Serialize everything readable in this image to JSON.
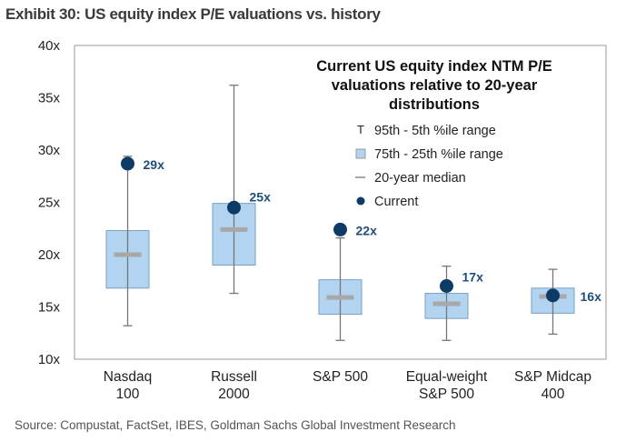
{
  "chart_data": {
    "type": "boxplot",
    "title": "Exhibit 30: US equity index P/E valuations vs. history",
    "subtitle": [
      "Current US equity index NTM P/E",
      "valuations relative to 20-year",
      "distributions"
    ],
    "ylim": [
      10,
      40
    ],
    "yticks": [
      10,
      15,
      20,
      25,
      30,
      35,
      40
    ],
    "ytick_suffix": "x",
    "legend_position": "top-right",
    "legend": [
      {
        "symbol": "T",
        "label": "95th - 5th %ile range"
      },
      {
        "symbol": "box",
        "label": "75th - 25th %ile range"
      },
      {
        "symbol": "line",
        "label": "20-year median"
      },
      {
        "symbol": "dot",
        "label": "Current"
      }
    ],
    "categories": [
      {
        "label": [
          "Nasdaq",
          "100"
        ],
        "p5": 13.2,
        "p25": 16.8,
        "median": 20.0,
        "p75": 22.3,
        "p95": 29.4,
        "current": 28.7,
        "current_label": "29x"
      },
      {
        "label": [
          "Russell",
          "2000"
        ],
        "p5": 16.3,
        "p25": 19.0,
        "median": 22.4,
        "p75": 24.9,
        "p95": 36.2,
        "current": 24.5,
        "current_label": "25x"
      },
      {
        "label": [
          "S&P 500",
          ""
        ],
        "p5": 11.8,
        "p25": 14.3,
        "median": 15.9,
        "p75": 17.6,
        "p95": 21.6,
        "current": 22.4,
        "current_label": "22x"
      },
      {
        "label": [
          "Equal-weight",
          "S&P 500"
        ],
        "p5": 11.8,
        "p25": 13.9,
        "median": 15.3,
        "p75": 16.3,
        "p95": 18.9,
        "current": 17.0,
        "current_label": "17x"
      },
      {
        "label": [
          "S&P Midcap",
          "400"
        ],
        "p5": 12.4,
        "p25": 14.4,
        "median": 16.0,
        "p75": 16.8,
        "p95": 18.6,
        "current": 16.1,
        "current_label": "16x"
      }
    ],
    "colors": {
      "box": "#b3d4f0",
      "box_border": "#7a9fc4",
      "median": "#a8a8a8",
      "whisker": "#777777",
      "current": "#0d3b66",
      "label": "#1f4e79"
    }
  },
  "source": "Source: Compustat, FactSet, IBES, Goldman Sachs Global Investment Research"
}
